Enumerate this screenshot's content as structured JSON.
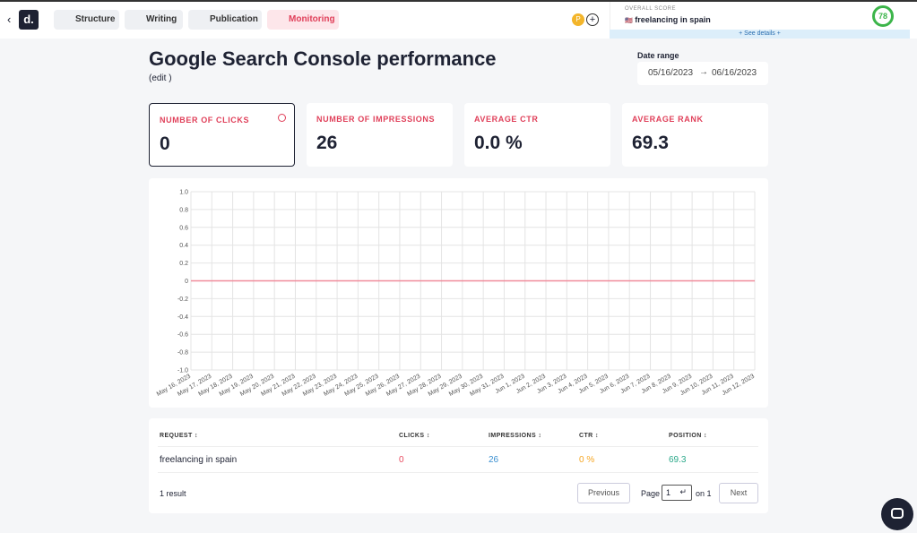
{
  "nav": {
    "tabs": [
      "Structure",
      "Writing",
      "Publication",
      "Monitoring"
    ],
    "avatar": "P"
  },
  "score": {
    "label": "OVERALL SCORE",
    "keyword": "freelancing in spain",
    "value": "78",
    "details": "+ See details +"
  },
  "header": {
    "title": "Google Search Console performance",
    "edit": "(edit )"
  },
  "date_range": {
    "label": "Date range",
    "start": "05/16/2023",
    "end": "06/16/2023"
  },
  "cards": [
    {
      "label": "NUMBER OF CLICKS",
      "value": "0"
    },
    {
      "label": "NUMBER OF IMPRESSIONS",
      "value": "26"
    },
    {
      "label": "AVERAGE CTR",
      "value": "0.0 %"
    },
    {
      "label": "AVERAGE RANK",
      "value": "69.3"
    }
  ],
  "chart_data": {
    "type": "line",
    "categories": [
      "May 16, 2023",
      "May 17, 2023",
      "May 18, 2023",
      "May 19, 2023",
      "May 20, 2023",
      "May 21, 2023",
      "May 22, 2023",
      "May 23, 2023",
      "May 24, 2023",
      "May 25, 2023",
      "May 26, 2023",
      "May 27, 2023",
      "May 28, 2023",
      "May 29, 2023",
      "May 30, 2023",
      "May 31, 2023",
      "Jun 1, 2023",
      "Jun 2, 2023",
      "Jun 3, 2023",
      "Jun 4, 2023",
      "Jun 5, 2023",
      "Jun 6, 2023",
      "Jun 7, 2023",
      "Jun 8, 2023",
      "Jun 9, 2023",
      "Jun 10, 2023",
      "Jun 11, 2023",
      "Jun 12, 2023"
    ],
    "values": [
      0,
      0,
      0,
      0,
      0,
      0,
      0,
      0,
      0,
      0,
      0,
      0,
      0,
      0,
      0,
      0,
      0,
      0,
      0,
      0,
      0,
      0,
      0,
      0,
      0,
      0,
      0,
      0
    ],
    "color": "#f08a9a",
    "ylim": [
      -1,
      1
    ],
    "yticks": [
      {
        "value": -1,
        "label": "-1.0"
      },
      -0.8,
      -0.6,
      -0.4,
      -0.2,
      0,
      0.2,
      0.4,
      0.6,
      0.8,
      {
        "value": 1,
        "label": "1.0"
      }
    ],
    "grid": true
  },
  "table": {
    "headers": [
      "REQUEST",
      "CLICKS",
      "IMPRESSIONS",
      "CTR",
      "POSITION"
    ],
    "rows": [
      [
        "freelancing in spain",
        "0",
        "26",
        "0 %",
        "69.3"
      ]
    ]
  },
  "pagination": {
    "count": "1 result",
    "previous": "Previous",
    "page": "Page",
    "page_value": "1",
    "of": "on 1",
    "next": "Next"
  }
}
